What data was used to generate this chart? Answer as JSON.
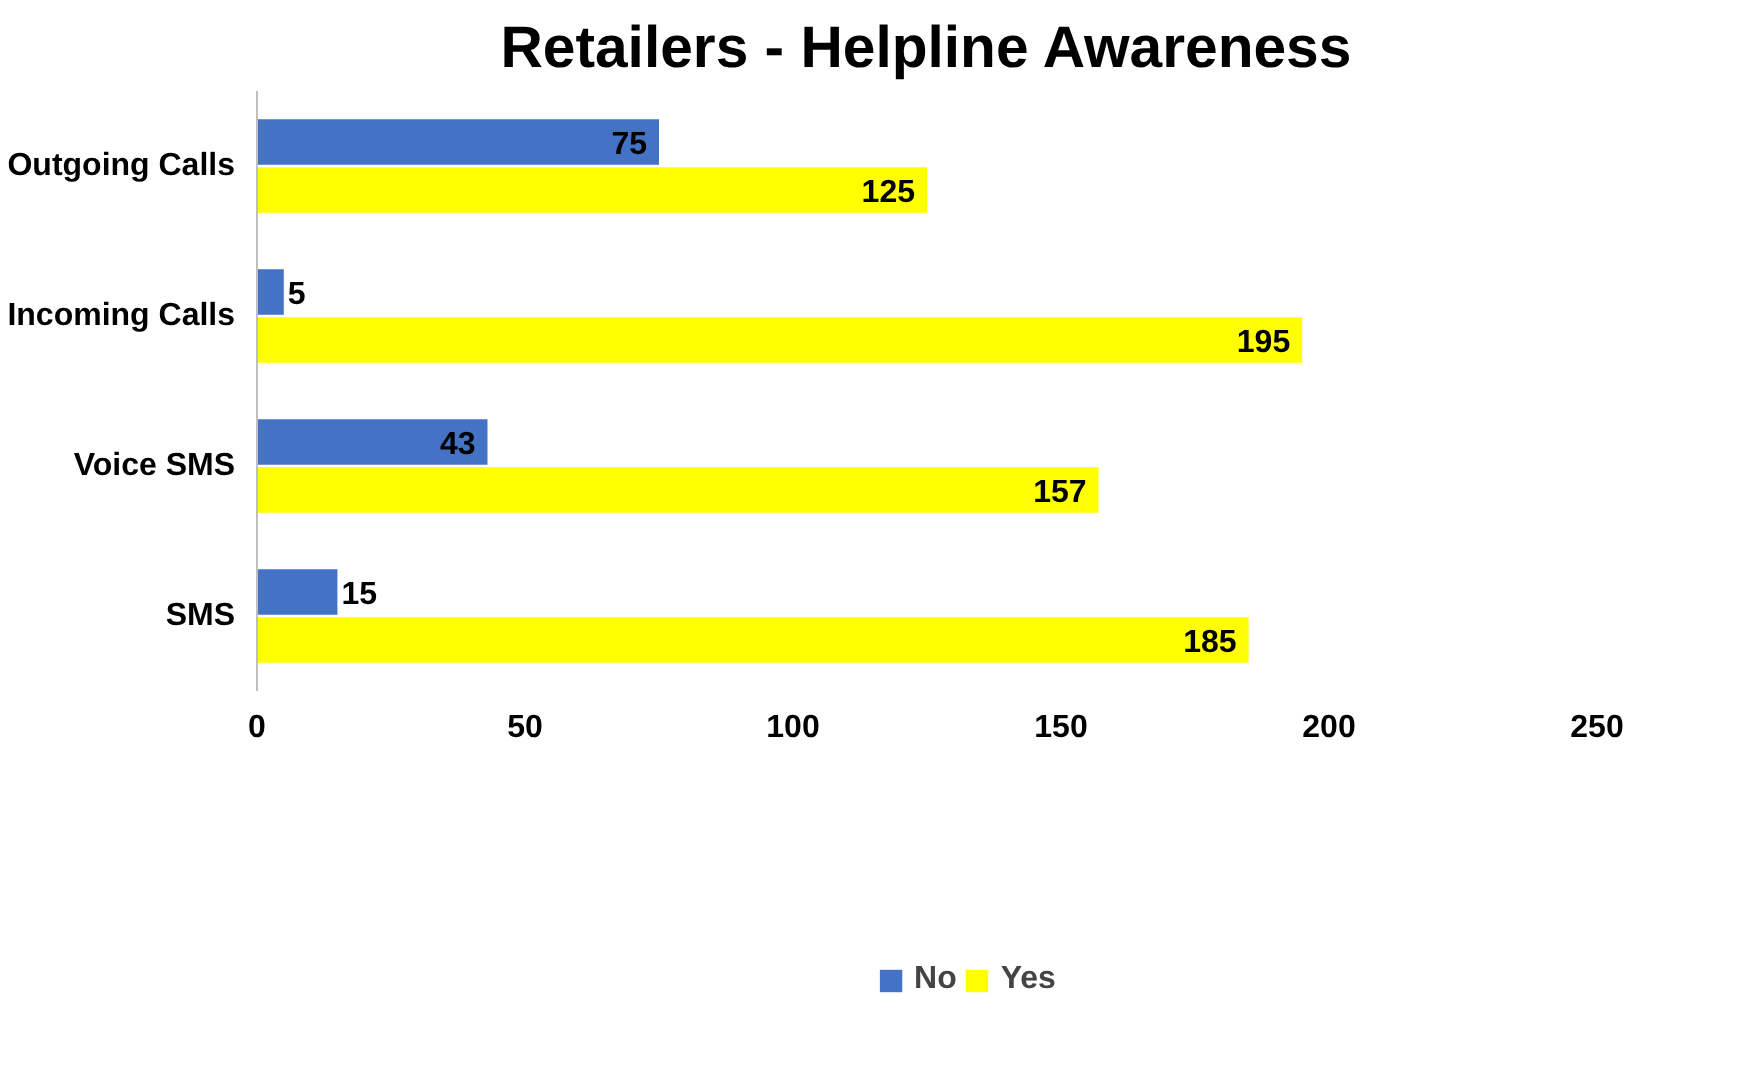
{
  "chart_data": {
    "type": "bar",
    "orientation": "horizontal",
    "title": "Retailers - Helpline Awareness",
    "categories": [
      "Outgoing Calls",
      "Incoming Calls",
      "Voice SMS",
      "SMS"
    ],
    "series": [
      {
        "name": "No",
        "color": "#4472c4",
        "values": [
          75,
          5,
          43,
          15
        ]
      },
      {
        "name": "Yes",
        "color": "#ffff00",
        "values": [
          125,
          195,
          157,
          185
        ]
      }
    ],
    "xlim": [
      0,
      250
    ],
    "xticks": [
      0,
      50,
      100,
      150,
      200,
      250
    ],
    "data_labels": true,
    "grid": false,
    "legend": "bottom"
  }
}
